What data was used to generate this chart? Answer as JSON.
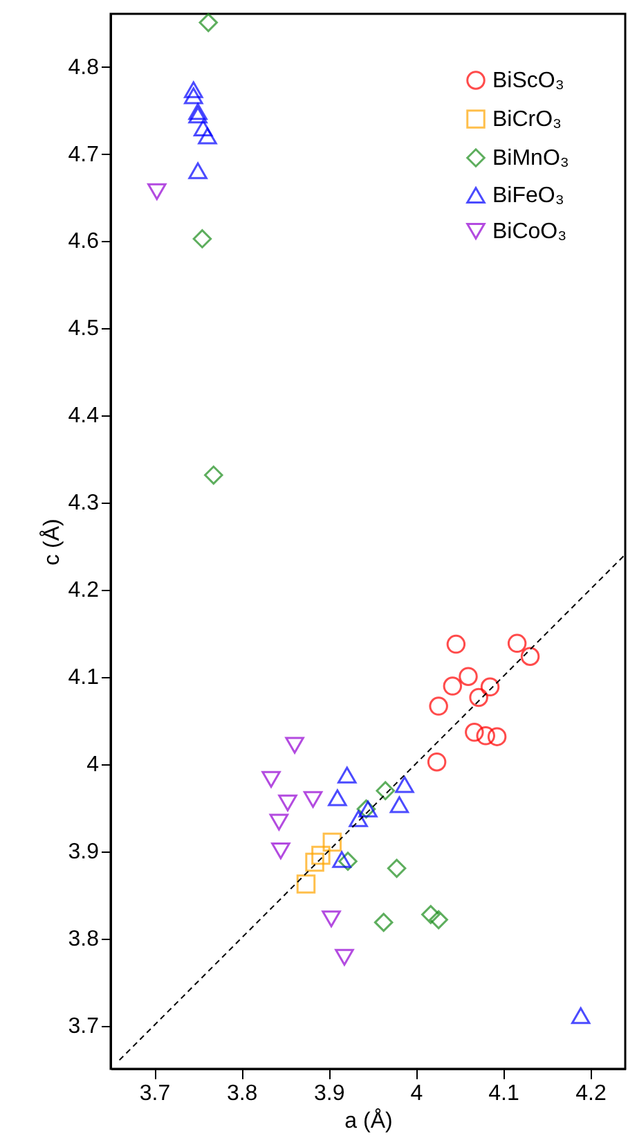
{
  "chart_data": {
    "type": "scatter",
    "xlabel": "a (Å)",
    "ylabel": "c (Å)",
    "xlim": [
      3.65,
      4.24
    ],
    "ylim": [
      3.65,
      4.86
    ],
    "xticks": [
      3.7,
      3.8,
      3.9,
      4,
      4.1,
      4.2
    ],
    "yticks": [
      3.7,
      3.8,
      3.9,
      4,
      4.1,
      4.2,
      4.3,
      4.4,
      4.5,
      4.6,
      4.7,
      4.8
    ],
    "grid": false,
    "legend": "top right",
    "series": [
      {
        "name": "BiScO₃",
        "color": "#ff0000",
        "marker": "circle",
        "x": [
          4.046,
          4.116,
          4.131,
          4.06,
          4.042,
          4.085,
          4.072,
          4.026,
          4.067,
          4.08,
          4.093,
          4.024
        ],
        "values": [
          4.137,
          4.138,
          4.123,
          4.1,
          4.089,
          4.088,
          4.076,
          4.066,
          4.036,
          4.032,
          4.031,
          4.002
        ]
      },
      {
        "name": "BiCrO₃",
        "color": "#ffa500",
        "marker": "square",
        "x": [
          3.904,
          3.891,
          3.884,
          3.874
        ],
        "values": [
          3.91,
          3.895,
          3.887,
          3.862
        ]
      },
      {
        "name": "BiMnO₃",
        "color": "#1a8c1a",
        "marker": "diamond",
        "x": [
          3.762,
          3.755,
          3.768,
          3.965,
          3.943,
          3.922,
          3.978,
          3.963,
          4.017,
          4.026
        ],
        "values": [
          4.85,
          4.602,
          4.331,
          3.969,
          3.948,
          3.888,
          3.88,
          3.818,
          3.827,
          3.821
        ]
      },
      {
        "name": "BiFeO₃",
        "color": "#0000ff",
        "marker": "triangle",
        "x": [
          3.745,
          3.745,
          3.75,
          3.75,
          3.756,
          3.761,
          3.75,
          3.921,
          3.987,
          3.91,
          3.981,
          3.945,
          3.934,
          3.915,
          4.189
        ],
        "values": [
          4.773,
          4.766,
          4.748,
          4.744,
          4.729,
          4.72,
          4.68,
          3.987,
          3.976,
          3.961,
          3.953,
          3.948,
          3.937,
          3.89,
          3.711
        ]
      },
      {
        "name": "BiCoO₃",
        "color": "#9400d3",
        "marker": "triangle-down",
        "x": [
          3.703,
          3.861,
          3.834,
          3.882,
          3.853,
          3.843,
          3.845,
          3.903,
          3.918
        ],
        "values": [
          4.656,
          4.021,
          3.982,
          3.959,
          3.955,
          3.933,
          3.9,
          3.822,
          3.778
        ]
      },
      {
        "type": "line",
        "color": "#000000",
        "line_style": "dashed",
        "marker": "none",
        "x": [
          3.66,
          4.24
        ],
        "values": [
          3.66,
          4.24
        ]
      }
    ]
  }
}
